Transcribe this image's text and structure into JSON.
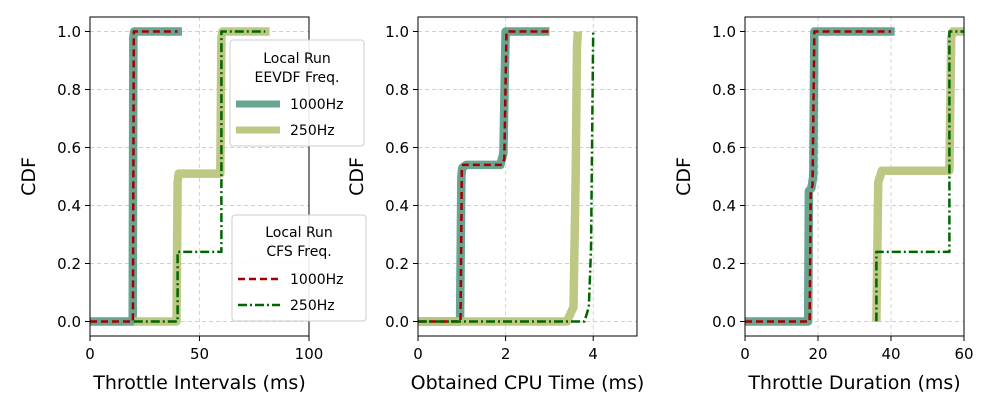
{
  "legends": [
    {
      "title_lines": [
        "Local Run",
        "EEVDF Freq."
      ],
      "entries": [
        {
          "label": "1000Hz",
          "color": "#5fa08b",
          "style": "solid-thick"
        },
        {
          "label": "250Hz",
          "color": "#bcc47e",
          "style": "solid-thick"
        }
      ]
    },
    {
      "title_lines": [
        "Local Run",
        "CFS Freq."
      ],
      "entries": [
        {
          "label": "1000Hz",
          "color": "#a30000",
          "style": "dashed"
        },
        {
          "label": "250Hz",
          "color": "#006600",
          "style": "dashdot"
        }
      ]
    }
  ],
  "chart_data": [
    {
      "type": "line",
      "title": "",
      "xlabel": "Throttle Intervals (ms)",
      "ylabel": "CDF",
      "xlim": [
        0,
        100
      ],
      "ylim": [
        -0.05,
        1.05
      ],
      "xticks": [
        0,
        50,
        100
      ],
      "yticks": [
        0.0,
        0.2,
        0.4,
        0.6,
        0.8,
        1.0
      ],
      "grid": true,
      "series": [
        {
          "name": "EEVDF 1000Hz",
          "color": "#5fa08b",
          "style": "thick",
          "x": [
            0,
            19.5,
            19.8,
            20.2,
            42
          ],
          "y": [
            0,
            0,
            0.98,
            1,
            1
          ]
        },
        {
          "name": "EEVDF 250Hz",
          "color": "#bcc47e",
          "style": "thick",
          "x": [
            20,
            39.5,
            40,
            40.5,
            59.5,
            60,
            60.5,
            82
          ],
          "y": [
            0,
            0,
            0.48,
            0.51,
            0.51,
            0.98,
            1,
            1
          ]
        },
        {
          "name": "CFS 1000Hz",
          "color": "#a30000",
          "style": "dashed",
          "x": [
            0,
            19.6,
            20,
            40
          ],
          "y": [
            0,
            0,
            1,
            1
          ]
        },
        {
          "name": "CFS 250Hz",
          "color": "#006600",
          "style": "dashdot",
          "x": [
            20,
            40,
            40,
            60,
            60,
            80
          ],
          "y": [
            0,
            0,
            0.24,
            0.24,
            1,
            1
          ]
        }
      ]
    },
    {
      "type": "line",
      "title": "",
      "xlabel": "Obtained CPU Time (ms)",
      "ylabel": "CDF",
      "xlim": [
        0,
        5
      ],
      "ylim": [
        -0.05,
        1.05
      ],
      "xticks": [
        0,
        2,
        4
      ],
      "yticks": [
        0.0,
        0.2,
        0.4,
        0.6,
        0.8,
        1.0
      ],
      "grid": true,
      "series": [
        {
          "name": "EEVDF 1000Hz",
          "color": "#5fa08b",
          "style": "thick",
          "x": [
            0,
            0.96,
            0.99,
            1.01,
            1.1,
            1.88,
            1.95,
            2.0,
            3.0
          ],
          "y": [
            0,
            0,
            0.5,
            0.53,
            0.54,
            0.54,
            0.58,
            1,
            1
          ]
        },
        {
          "name": "EEVDF 250Hz",
          "color": "#bcc47e",
          "style": "thick",
          "x": [
            0,
            3.4,
            3.55,
            3.6,
            3.63,
            3.65
          ],
          "y": [
            0,
            0,
            0.05,
            0.5,
            0.95,
            1.0
          ]
        },
        {
          "name": "CFS 1000Hz",
          "color": "#a30000",
          "style": "dashed",
          "x": [
            0,
            0.97,
            1.0,
            1.03,
            1.92,
            1.97,
            2.02,
            3.0
          ],
          "y": [
            0,
            0,
            0.52,
            0.54,
            0.54,
            0.56,
            1,
            1
          ]
        },
        {
          "name": "CFS 250Hz",
          "color": "#006600",
          "style": "dashdot",
          "x": [
            0,
            3.8,
            3.9,
            3.95,
            3.98,
            4.0
          ],
          "y": [
            0,
            0,
            0.05,
            0.25,
            0.7,
            1.0
          ]
        }
      ]
    },
    {
      "type": "line",
      "title": "",
      "xlabel": "Throttle Duration (ms)",
      "ylabel": "CDF",
      "xlim": [
        0,
        60
      ],
      "ylim": [
        -0.05,
        1.05
      ],
      "xticks": [
        0,
        20,
        40,
        60
      ],
      "yticks": [
        0.0,
        0.2,
        0.4,
        0.6,
        0.8,
        1.0
      ],
      "grid": true,
      "series": [
        {
          "name": "EEVDF 1000Hz",
          "color": "#5fa08b",
          "style": "thick",
          "x": [
            0,
            17.3,
            17.5,
            18.2,
            18.7,
            19.0,
            41
          ],
          "y": [
            0,
            0,
            0.45,
            0.46,
            0.5,
            1,
            1
          ]
        },
        {
          "name": "EEVDF 250Hz",
          "color": "#bcc47e",
          "style": "thick",
          "x": [
            36,
            36.5,
            37.5,
            56,
            56.5,
            57,
            60
          ],
          "y": [
            0,
            0.48,
            0.52,
            0.52,
            0.98,
            1,
            1
          ]
        },
        {
          "name": "CFS 1000Hz",
          "color": "#a30000",
          "style": "dashed",
          "x": [
            0,
            17.7,
            18.0,
            18.5,
            19.0,
            40
          ],
          "y": [
            0,
            0,
            0.44,
            0.47,
            1,
            1
          ]
        },
        {
          "name": "CFS 250Hz",
          "color": "#006600",
          "style": "dashdot",
          "x": [
            36,
            36,
            56,
            56,
            60
          ],
          "y": [
            0,
            0.24,
            0.24,
            1,
            1
          ]
        }
      ]
    }
  ]
}
